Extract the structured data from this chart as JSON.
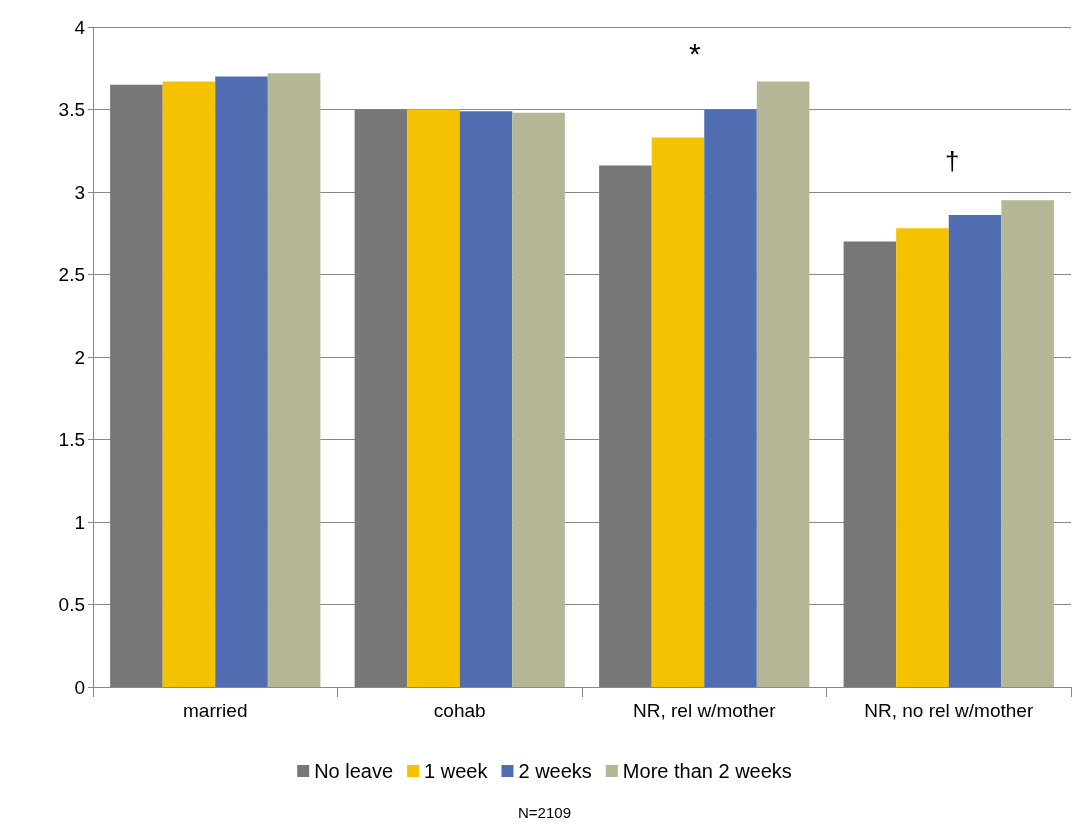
{
  "chart_data": {
    "type": "bar",
    "categories": [
      "married",
      "cohab",
      "NR, rel w/mother",
      "NR, no rel w/mother"
    ],
    "series": [
      {
        "name": "No leave",
        "color": "#777777",
        "values": [
          3.65,
          3.5,
          3.16,
          2.7
        ]
      },
      {
        "name": "1 week",
        "color": "#f5c200",
        "values": [
          3.67,
          3.5,
          3.33,
          2.78
        ]
      },
      {
        "name": "2 weeks",
        "color": "#4f6db0",
        "values": [
          3.7,
          3.49,
          3.5,
          2.86
        ]
      },
      {
        "name": "More than 2 weeks",
        "color": "#b5b695",
        "values": [
          3.72,
          3.48,
          3.67,
          2.95
        ]
      }
    ],
    "ylim": [
      0,
      4
    ],
    "yticks": [
      0,
      0.5,
      1,
      1.5,
      2,
      2.5,
      3,
      3.5,
      4
    ],
    "grid": "y",
    "legend": "bottom",
    "annotations": [
      "*",
      "†",
      "N=2109"
    ]
  }
}
